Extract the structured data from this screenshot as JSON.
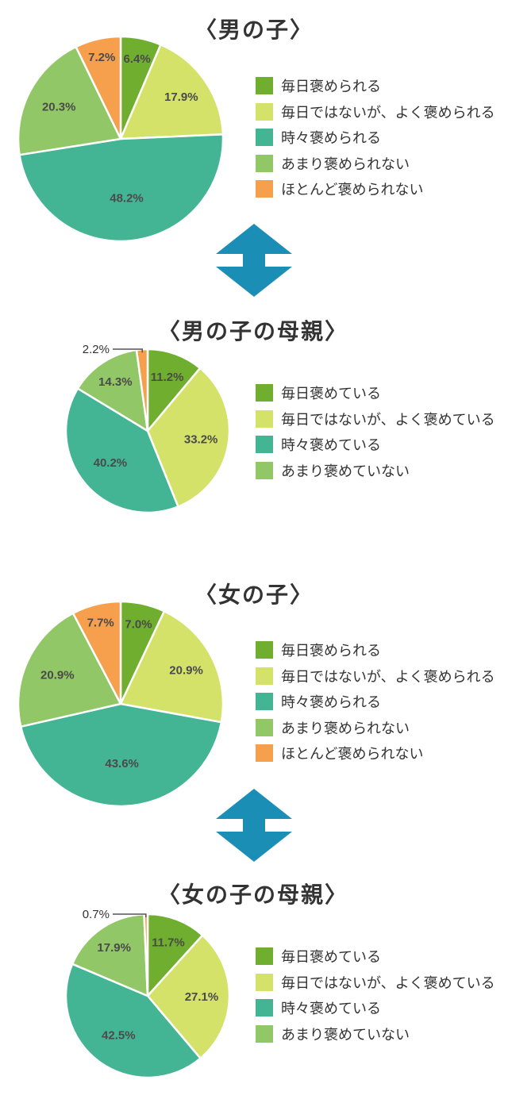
{
  "colors": {
    "daily": "#6fae2e",
    "not_daily": "#d4e26a",
    "sometimes": "#43b594",
    "rarely": "#91c766",
    "never": "#f6a04d",
    "arrow": "#1b8eb6"
  },
  "chart_data": [
    {
      "type": "pie",
      "title": "〈男の子〉",
      "categories": [
        "毎日褒められる",
        "毎日ではないが、よく褒められる",
        "時々褒められる",
        "あまり褒められない",
        "ほとんど褒められない"
      ],
      "values": [
        6.4,
        17.9,
        48.2,
        20.3,
        7.2
      ],
      "labels": [
        "6.4%",
        "17.9%",
        "48.2%",
        "20.3%",
        "7.2%"
      ],
      "colors": [
        "#6fae2e",
        "#d4e26a",
        "#43b594",
        "#91c766",
        "#f6a04d"
      ],
      "legend": "right"
    },
    {
      "type": "pie",
      "title": "〈男の子の母親〉",
      "categories": [
        "毎日褒めている",
        "毎日ではないが、よく褒めている",
        "時々褒めている",
        "あまり褒めていない",
        ""
      ],
      "values": [
        11.2,
        33.2,
        40.2,
        14.3,
        2.2
      ],
      "labels": [
        "11.2%",
        "33.2%",
        "40.2%",
        "14.3%",
        "2.2%"
      ],
      "colors": [
        "#6fae2e",
        "#d4e26a",
        "#43b594",
        "#91c766",
        "#f6a04d"
      ],
      "legend": "right"
    },
    {
      "type": "pie",
      "title": "〈女の子〉",
      "categories": [
        "毎日褒められる",
        "毎日ではないが、よく褒められる",
        "時々褒められる",
        "あまり褒められない",
        "ほとんど褒められない"
      ],
      "values": [
        7.0,
        20.9,
        43.6,
        20.9,
        7.7
      ],
      "labels": [
        "7.0%",
        "20.9%",
        "43.6%",
        "20.9%",
        "7.7%"
      ],
      "colors": [
        "#6fae2e",
        "#d4e26a",
        "#43b594",
        "#91c766",
        "#f6a04d"
      ],
      "legend": "right"
    },
    {
      "type": "pie",
      "title": "〈女の子の母親〉",
      "categories": [
        "毎日褒めている",
        "毎日ではないが、よく褒めている",
        "時々褒めている",
        "あまり褒めていない",
        ""
      ],
      "values": [
        11.7,
        27.1,
        42.5,
        17.9,
        0.7
      ],
      "labels": [
        "11.7%",
        "27.1%",
        "42.5%",
        "17.9%",
        "0.7%"
      ],
      "colors": [
        "#6fae2e",
        "#d4e26a",
        "#43b594",
        "#91c766",
        "#f6a04d"
      ],
      "legend": "right"
    }
  ]
}
